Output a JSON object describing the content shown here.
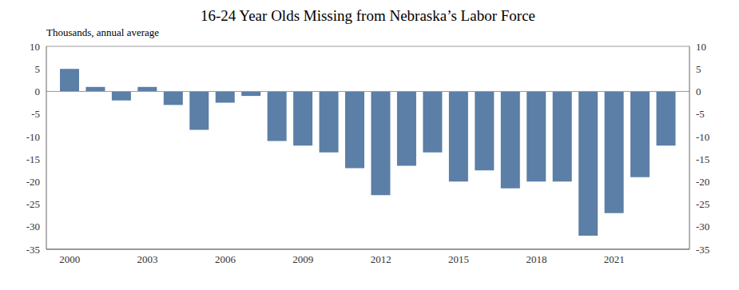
{
  "chart_data": {
    "type": "bar",
    "title": "16-24 Year Olds Missing from Nebraska’s Labor Force",
    "subtitle": "Thousands, annual average",
    "x": [
      2000,
      2001,
      2002,
      2003,
      2004,
      2005,
      2006,
      2007,
      2008,
      2009,
      2010,
      2011,
      2012,
      2013,
      2014,
      2015,
      2016,
      2017,
      2018,
      2019,
      2020,
      2021,
      2022,
      2023
    ],
    "values": [
      5.0,
      1.0,
      -2.0,
      1.0,
      -3.0,
      -8.5,
      -2.5,
      -1.0,
      -11.0,
      -12.0,
      -13.5,
      -17.0,
      -23.0,
      -16.5,
      -13.5,
      -20.0,
      -17.5,
      -21.5,
      -20.0,
      -20.0,
      -32.0,
      -27.0,
      -19.0,
      -12.0
    ],
    "color": "#5B7FA6",
    "xlim": [
      1999.1,
      2023.9
    ],
    "xticks": [
      2000,
      2003,
      2006,
      2009,
      2012,
      2015,
      2018,
      2021
    ],
    "ylim": [
      -35,
      10
    ],
    "yticks": [
      -35,
      -30,
      -25,
      -20,
      -15,
      -10,
      -5,
      0,
      5,
      10
    ],
    "y2lim": [
      -35,
      10
    ],
    "y2ticks": [
      -35,
      -30,
      -25,
      -20,
      -15,
      -10,
      -5,
      0,
      5,
      10
    ],
    "grid": false
  }
}
